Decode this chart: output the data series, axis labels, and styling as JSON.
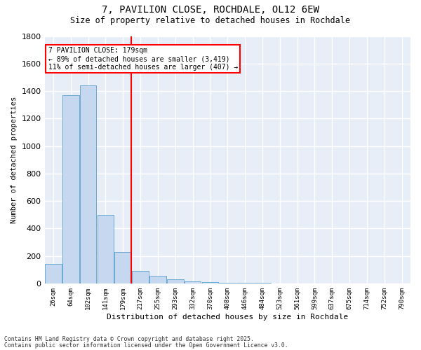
{
  "title_line1": "7, PAVILION CLOSE, ROCHDALE, OL12 6EW",
  "title_line2": "Size of property relative to detached houses in Rochdale",
  "xlabel": "Distribution of detached houses by size in Rochdale",
  "ylabel": "Number of detached properties",
  "categories": [
    "26sqm",
    "64sqm",
    "102sqm",
    "141sqm",
    "179sqm",
    "217sqm",
    "255sqm",
    "293sqm",
    "332sqm",
    "370sqm",
    "408sqm",
    "446sqm",
    "484sqm",
    "523sqm",
    "561sqm",
    "599sqm",
    "637sqm",
    "675sqm",
    "714sqm",
    "752sqm",
    "790sqm"
  ],
  "values": [
    140,
    1370,
    1440,
    500,
    230,
    90,
    55,
    30,
    15,
    8,
    5,
    3,
    2,
    1,
    1,
    1,
    0,
    0,
    0,
    0,
    0
  ],
  "bar_color": "#c5d8f0",
  "bar_edge_color": "#6aaad4",
  "property_size_label": "179sqm",
  "vline_color": "red",
  "annotation_text": "7 PAVILION CLOSE: 179sqm\n← 89% of detached houses are smaller (3,419)\n11% of semi-detached houses are larger (407) →",
  "annotation_box_color": "white",
  "annotation_border_color": "red",
  "ylim": [
    0,
    1800
  ],
  "yticks": [
    0,
    200,
    400,
    600,
    800,
    1000,
    1200,
    1400,
    1600,
    1800
  ],
  "background_color": "#e8eef8",
  "grid_color": "white",
  "footnote1": "Contains HM Land Registry data © Crown copyright and database right 2025.",
  "footnote2": "Contains public sector information licensed under the Open Government Licence v3.0."
}
